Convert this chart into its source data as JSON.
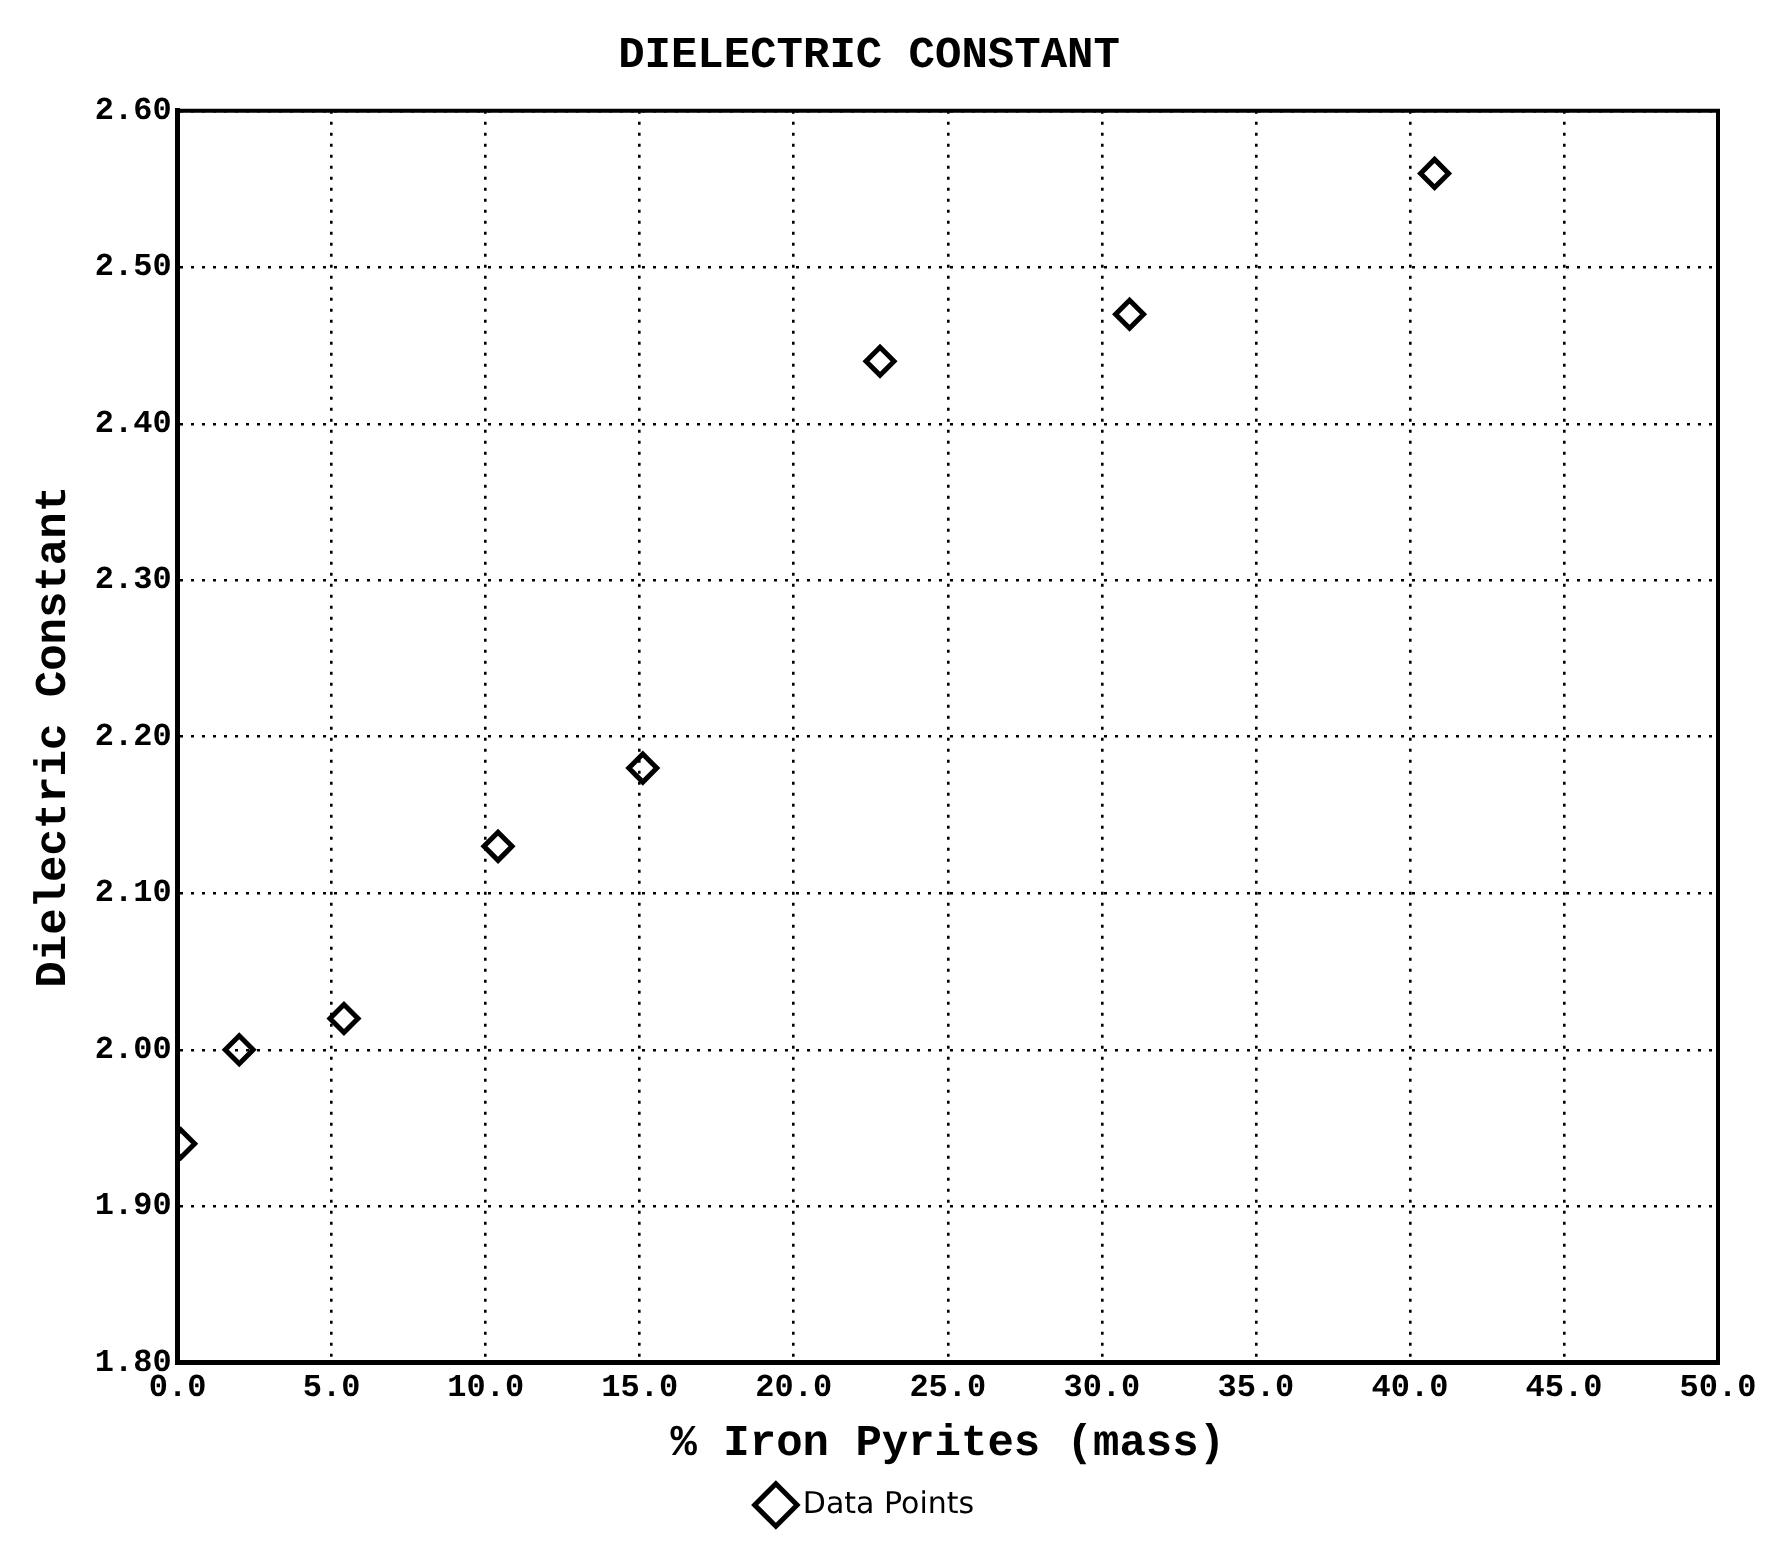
{
  "chart_data": {
    "type": "scatter",
    "title": "DIELECTRIC CONSTANT",
    "xlabel": "% Iron Pyrites (mass)",
    "ylabel": "Dielectric Constant",
    "series": [
      {
        "name": "Data Points",
        "color": "#000000",
        "x": [
          0.1,
          2.0,
          5.4,
          10.4,
          15.1,
          22.8,
          30.9,
          40.8
        ],
        "values": [
          1.94,
          2.0,
          2.02,
          2.13,
          2.18,
          2.44,
          2.47,
          2.56
        ]
      }
    ],
    "xlim": [
      0,
      50
    ],
    "xticks": [
      {
        "value": 0,
        "label": "0.0"
      },
      {
        "value": 5,
        "label": "5.0"
      },
      {
        "value": 10,
        "label": "10.0"
      },
      {
        "value": 15,
        "label": "15.0"
      },
      {
        "value": 20,
        "label": "20.0"
      },
      {
        "value": 25,
        "label": "25.0"
      },
      {
        "value": 30,
        "label": "30.0"
      },
      {
        "value": 35,
        "label": "35.0"
      },
      {
        "value": 40,
        "label": "40.0"
      },
      {
        "value": 45,
        "label": "45.0"
      },
      {
        "value": 50,
        "label": "50.0"
      }
    ],
    "ylim": [
      1.8,
      2.6
    ],
    "yticks": [
      {
        "value": 1.8,
        "label": "1.80"
      },
      {
        "value": 1.9,
        "label": "1.90"
      },
      {
        "value": 2.0,
        "label": "2.00"
      },
      {
        "value": 2.1,
        "label": "2.10"
      },
      {
        "value": 2.2,
        "label": "2.20"
      },
      {
        "value": 2.3,
        "label": "2.30"
      },
      {
        "value": 2.4,
        "label": "2.40"
      },
      {
        "value": 2.5,
        "label": "2.50"
      },
      {
        "value": 2.6,
        "label": "2.60"
      }
    ],
    "grid": true,
    "legend": "bottom",
    "marker": "diamond"
  }
}
